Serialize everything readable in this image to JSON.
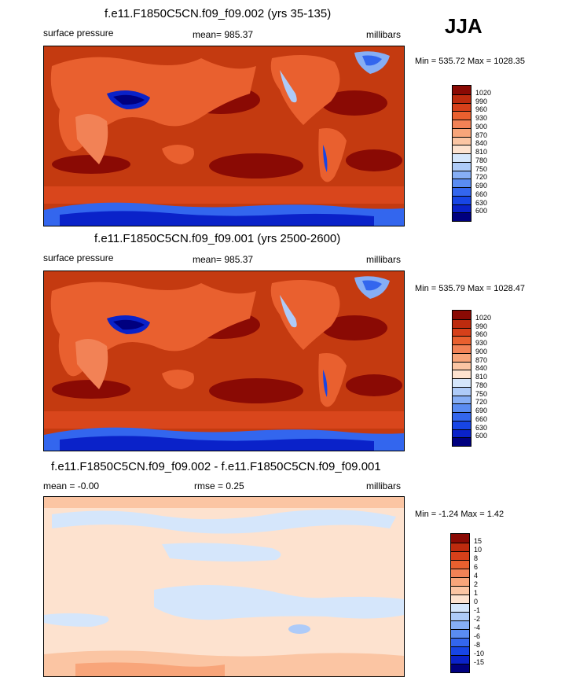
{
  "season": "JJA",
  "palette_pressure": [
    "#00007f",
    "#0a22c9",
    "#1745e5",
    "#3366ee",
    "#5a8cf2",
    "#86aef5",
    "#aecbf8",
    "#d5e6fb",
    "#fde2cf",
    "#fbc5a3",
    "#f8a57a",
    "#f28256",
    "#e9602f",
    "#d6401a",
    "#bd2b0e",
    "#8a0a04"
  ],
  "palette_diff": [
    "#00007f",
    "#0a22c9",
    "#1745e5",
    "#3366ee",
    "#5a8cf2",
    "#86aef5",
    "#aecbf8",
    "#d5e6fb",
    "#fde2cf",
    "#fbc5a3",
    "#f8a57a",
    "#f28256",
    "#e9602f",
    "#d6401a",
    "#bd2b0e",
    "#8a0a04"
  ],
  "panels": [
    {
      "title": "f.e11.F1850C5CN.f09_f09.002 (yrs 35-135)",
      "left_label": "surface pressure",
      "center_label": "mean= 985.37",
      "right_label": "millibars",
      "minmax": "Min = 535.72 Max = 1028.35",
      "levels": [
        "1020",
        "990",
        "960",
        "930",
        "900",
        "870",
        "840",
        "810",
        "780",
        "750",
        "720",
        "690",
        "660",
        "630",
        "600"
      ]
    },
    {
      "title": "f.e11.F1850C5CN.f09_f09.001 (yrs 2500-2600)",
      "left_label": "surface pressure",
      "center_label": "mean= 985.37",
      "right_label": "millibars",
      "minmax": "Min = 535.79 Max = 1028.47",
      "levels": [
        "1020",
        "990",
        "960",
        "930",
        "900",
        "870",
        "840",
        "810",
        "780",
        "750",
        "720",
        "690",
        "660",
        "630",
        "600"
      ]
    },
    {
      "title": "f.e11.F1850C5CN.f09_f09.002 - f.e11.F1850C5CN.f09_f09.001",
      "left_label": "mean =  -0.00",
      "center_label": "rmse =   0.25",
      "right_label": "millibars",
      "minmax": "Min =  -1.24 Max =   1.42",
      "levels": [
        "15",
        "10",
        "8",
        "6",
        "4",
        "2",
        "1",
        "0",
        "-1",
        "-2",
        "-4",
        "-6",
        "-8",
        "-10",
        "-15"
      ]
    }
  ],
  "chart_data": [
    {
      "type": "heatmap",
      "title": "f.e11.F1850C5CN.f09_f09.002 (yrs 35-135)",
      "variable": "surface pressure",
      "units": "millibars",
      "mean": 985.37,
      "min": 535.72,
      "max": 1028.35,
      "contour_levels": [
        600,
        630,
        660,
        690,
        720,
        750,
        780,
        810,
        840,
        870,
        900,
        930,
        960,
        990,
        1020
      ]
    },
    {
      "type": "heatmap",
      "title": "f.e11.F1850C5CN.f09_f09.001 (yrs 2500-2600)",
      "variable": "surface pressure",
      "units": "millibars",
      "mean": 985.37,
      "min": 535.79,
      "max": 1028.47,
      "contour_levels": [
        600,
        630,
        660,
        690,
        720,
        750,
        780,
        810,
        840,
        870,
        900,
        930,
        960,
        990,
        1020
      ]
    },
    {
      "type": "heatmap",
      "title": "f.e11.F1850C5CN.f09_f09.002 - f.e11.F1850C5CN.f09_f09.001",
      "units": "millibars",
      "mean": -0.0,
      "rmse": 0.25,
      "min": -1.24,
      "max": 1.42,
      "contour_levels": [
        -15,
        -10,
        -8,
        -6,
        -4,
        -2,
        -1,
        0,
        1,
        2,
        4,
        6,
        8,
        10,
        15
      ]
    }
  ]
}
